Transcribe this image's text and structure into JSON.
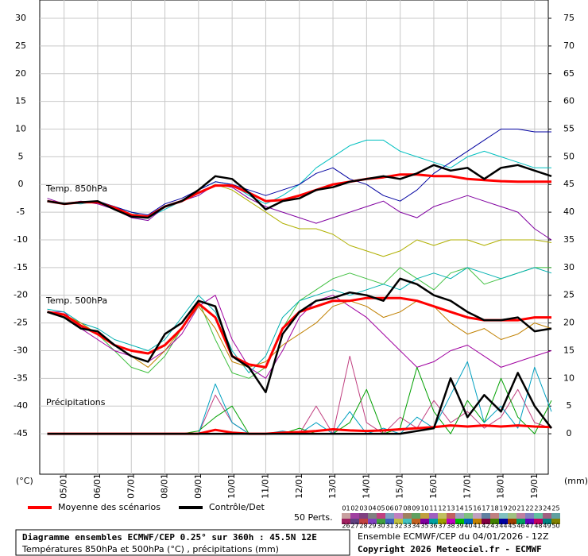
{
  "chart_data": {
    "type": "line",
    "title": "Diagramme ensembles ECMWF/CEP 0.25° sur 360h : 45.5N 12E",
    "subtitle": "Températures 850hPa et 500hPa (°C) , précipitations (mm)",
    "run_label": "Ensemble ECMWF/CEP du 04/01/2026 - 12Z",
    "copyright": "Copyright 2026 Meteociel.fr - ECMWF",
    "y_unit": "(°C)",
    "y2_unit": "(mm)",
    "grid": true,
    "categories": [
      null,
      "05/01",
      null,
      "06/01",
      null,
      "07/01",
      null,
      "08/01",
      null,
      "09/01",
      null,
      "10/01",
      null,
      "11/01",
      null,
      "12/01",
      null,
      "13/01",
      null,
      "14/01",
      null,
      "15/01",
      null,
      "16/01",
      null,
      "17/01",
      null,
      "18/01",
      null,
      "19/01",
      null
    ],
    "ylim": [
      -52.3,
      33.3
    ],
    "yticks": [
      30,
      25,
      20,
      15,
      10,
      5,
      0,
      -5,
      -10,
      -15,
      -20,
      -25,
      -30,
      -35,
      -40,
      -45
    ],
    "y2lim": [
      -7.3,
      78.3
    ],
    "y2ticks": [
      75,
      70,
      65,
      60,
      55,
      50,
      45,
      40,
      35,
      30,
      25,
      20,
      15,
      10,
      5,
      0
    ],
    "legend": [
      {
        "name": "Moyenne des scénarios",
        "color": "#ff0000"
      },
      {
        "name": "Contrôle/Det",
        "color": "#000000"
      }
    ],
    "perturbations_label": "50 Perts.",
    "members": [
      {
        "label": "01",
        "color": "#c8a0a0"
      },
      {
        "label": "02",
        "color": "#a040a0"
      },
      {
        "label": "03",
        "color": "#804080"
      },
      {
        "label": "04",
        "color": "#808080"
      },
      {
        "label": "05",
        "color": "#c04080"
      },
      {
        "label": "06",
        "color": "#80a0c0"
      },
      {
        "label": "07",
        "color": "#c080c0"
      },
      {
        "label": "08",
        "color": "#a08060"
      },
      {
        "label": "09",
        "color": "#60a060"
      },
      {
        "label": "10",
        "color": "#c0a040"
      },
      {
        "label": "11",
        "color": "#a060c0"
      },
      {
        "label": "12",
        "color": "#c0c060"
      },
      {
        "label": "13",
        "color": "#c06060"
      },
      {
        "label": "14",
        "color": "#a0a0c0"
      },
      {
        "label": "15",
        "color": "#80c080"
      },
      {
        "label": "16",
        "color": "#c0a0c0"
      },
      {
        "label": "17",
        "color": "#6080a0"
      },
      {
        "label": "18",
        "color": "#c08080"
      },
      {
        "label": "19",
        "color": "#80c0c0"
      },
      {
        "label": "20",
        "color": "#a0c080"
      },
      {
        "label": "21",
        "color": "#c080a0"
      },
      {
        "label": "22",
        "color": "#8080c0"
      },
      {
        "label": "23",
        "color": "#60c0a0"
      },
      {
        "label": "24",
        "color": "#a06080"
      },
      {
        "label": "25",
        "color": "#60a0a0"
      },
      {
        "label": "26",
        "color": "#a02060"
      },
      {
        "label": "27",
        "color": "#604080"
      },
      {
        "label": "28",
        "color": "#c04040"
      },
      {
        "label": "29",
        "color": "#8040c0"
      },
      {
        "label": "30",
        "color": "#40a040"
      },
      {
        "label": "31",
        "color": "#4060c0"
      },
      {
        "label": "32",
        "color": "#c0c040"
      },
      {
        "label": "33",
        "color": "#40c0c0"
      },
      {
        "label": "34",
        "color": "#c06020"
      },
      {
        "label": "35",
        "color": "#8000a0"
      },
      {
        "label": "36",
        "color": "#00a0a0"
      },
      {
        "label": "37",
        "color": "#a0a000"
      },
      {
        "label": "38",
        "color": "#c000c0"
      },
      {
        "label": "39",
        "color": "#00c000"
      },
      {
        "label": "40",
        "color": "#0060c0"
      },
      {
        "label": "41",
        "color": "#c08000"
      },
      {
        "label": "42",
        "color": "#800040"
      },
      {
        "label": "43",
        "color": "#408000"
      },
      {
        "label": "44",
        "color": "#0000a0"
      },
      {
        "label": "45",
        "color": "#a04000"
      },
      {
        "label": "46",
        "color": "#00a060"
      },
      {
        "label": "47",
        "color": "#6000c0"
      },
      {
        "label": "48",
        "color": "#c00060"
      },
      {
        "label": "49",
        "color": "#008080"
      },
      {
        "label": "50",
        "color": "#808000"
      }
    ],
    "panels": [
      {
        "label": "Temp. 850hPa",
        "axis": "y",
        "mean": [
          -3,
          -3.5,
          -3.2,
          -3.2,
          -4.2,
          -5.5,
          -5.8,
          -4,
          -3,
          -1.5,
          -0.2,
          -0.2,
          -1.5,
          -3,
          -2.8,
          -2,
          -1,
          0,
          0.5,
          1,
          1.3,
          1.8,
          1.8,
          1.5,
          1.5,
          1,
          0.8,
          0.6,
          0.5,
          0.5,
          0.5
        ],
        "control": [
          -3,
          -3.5,
          -3.2,
          -3,
          -4.5,
          -5.8,
          -6,
          -4,
          -3,
          -1,
          1.5,
          1,
          -1.5,
          -4.5,
          -3,
          -2.5,
          -1,
          -0.5,
          0.5,
          1,
          1.5,
          1,
          2,
          3.5,
          2.5,
          3,
          1,
          3,
          3.5,
          2.5,
          1.5
        ],
        "perturbations": [
          {
            "color": "#00c0c0",
            "values": [
              -3,
              -3.3,
              -3.5,
              -3,
              -4,
              -5,
              -6,
              -4.5,
              -3,
              -1,
              0.5,
              0,
              -2,
              -3.5,
              -2,
              0,
              3,
              5,
              7,
              8,
              8,
              6,
              5,
              4,
              3,
              5,
              6,
              5,
              4,
              3,
              3
            ]
          },
          {
            "color": "#8000a0",
            "values": [
              -2.5,
              -3.5,
              -3,
              -3.5,
              -4.5,
              -6,
              -6.5,
              -4,
              -3,
              -2,
              0,
              -0.5,
              -2.5,
              -4,
              -5,
              -6,
              -7,
              -6,
              -5,
              -4,
              -3,
              -5,
              -6,
              -4,
              -3,
              -2,
              -3,
              -4,
              -5,
              -8,
              -10
            ]
          },
          {
            "color": "#b0b000",
            "values": [
              -3,
              -3.5,
              -3.3,
              -3.3,
              -4,
              -5.5,
              -6,
              -4,
              -3,
              -1.5,
              0,
              -1,
              -3,
              -5,
              -7,
              -8,
              -8,
              -9,
              -11,
              -12,
              -13,
              -12,
              -10,
              -11,
              -10,
              -10,
              -11,
              -10,
              -10,
              -10,
              -10.5
            ]
          },
          {
            "color": "#0000a0",
            "values": [
              -3,
              -3.5,
              -3.2,
              -3,
              -4,
              -5,
              -5.5,
              -3.5,
              -2.5,
              -1,
              0.5,
              0,
              -1,
              -2,
              -1,
              0,
              2,
              3,
              1,
              0,
              -2,
              -3,
              -1,
              2,
              4,
              6,
              8,
              10,
              10,
              9.5,
              9.5
            ]
          }
        ]
      },
      {
        "label": "Temp. 500hPa",
        "axis": "y",
        "mean": [
          -23,
          -23.5,
          -25.5,
          -27,
          -29,
          -30,
          -30.5,
          -29,
          -26,
          -21.5,
          -24,
          -31,
          -32.5,
          -33,
          -26,
          -23,
          -22,
          -21,
          -21,
          -20.5,
          -20.5,
          -20.5,
          -21,
          -22,
          -23,
          -24,
          -24.5,
          -24.5,
          -24.5,
          -24,
          -24
        ],
        "control": [
          -23,
          -24,
          -26,
          -26.5,
          -29,
          -31,
          -32,
          -27,
          -25,
          -21,
          -22,
          -31,
          -33,
          -37.5,
          -27,
          -23,
          -21,
          -20.5,
          -19.5,
          -20,
          -21,
          -17,
          -18,
          -20,
          -21,
          -23,
          -24.5,
          -24.5,
          -24,
          -26.5,
          -26
        ],
        "perturbations": [
          {
            "color": "#40c040",
            "values": [
              -23,
              -24,
              -25,
              -27,
              -30,
              -33,
              -34,
              -31,
              -26,
              -21,
              -28,
              -34,
              -35,
              -33,
              -26,
              -21,
              -19,
              -17,
              -16,
              -17,
              -18,
              -15,
              -17,
              -19,
              -16,
              -15,
              -18,
              -17,
              -16,
              -15,
              -15
            ]
          },
          {
            "color": "#a000a0",
            "values": [
              -23,
              -23,
              -26,
              -28,
              -30,
              -31,
              -32,
              -30,
              -27,
              -22,
              -20,
              -28,
              -33,
              -35,
              -30,
              -24,
              -21,
              -20,
              -22,
              -24,
              -27,
              -30,
              -33,
              -32,
              -30,
              -29,
              -31,
              -33,
              -32,
              -31,
              -30
            ]
          },
          {
            "color": "#00b0b0",
            "values": [
              -22.5,
              -23,
              -25,
              -26,
              -28,
              -29,
              -30,
              -28,
              -24,
              -20,
              -23,
              -30,
              -34,
              -31,
              -24,
              -21,
              -20,
              -19,
              -20,
              -19,
              -18,
              -19,
              -17,
              -16,
              -17,
              -15,
              -16,
              -17,
              -16,
              -15,
              -16
            ]
          },
          {
            "color": "#c08000",
            "values": [
              -23,
              -23.5,
              -25,
              -27,
              -29,
              -31,
              -33,
              -30,
              -26,
              -22,
              -26,
              -32,
              -33,
              -32,
              -29,
              -27,
              -25,
              -22,
              -21,
              -22,
              -24,
              -23,
              -21,
              -22,
              -25,
              -27,
              -26,
              -28,
              -27,
              -25,
              -26
            ]
          }
        ]
      },
      {
        "label": "Précipitations",
        "axis": "y2",
        "mean": [
          0,
          0,
          0,
          0,
          0,
          0,
          0,
          0,
          0,
          0,
          0.7,
          0.2,
          0,
          0,
          0.2,
          0.3,
          0.5,
          0.8,
          0.6,
          0.5,
          0.6,
          0.8,
          1,
          1.2,
          1.5,
          1.3,
          1.5,
          1.3,
          1.5,
          1.3,
          1.2
        ],
        "control": [
          0,
          0,
          0,
          0,
          0,
          0,
          0,
          0,
          0,
          0,
          0,
          0,
          0,
          0,
          0,
          0,
          0,
          0,
          0,
          0,
          0,
          0,
          0.5,
          1,
          10,
          3,
          7,
          4,
          11,
          5,
          1
        ],
        "perturbations": [
          {
            "color": "#c04080",
            "values": [
              0,
              0,
              0,
              0,
              0,
              0,
              0,
              0,
              0,
              0,
              7,
              2,
              0,
              0,
              0,
              0,
              5,
              0,
              14,
              2,
              0,
              3,
              1,
              6,
              2,
              4,
              1,
              3,
              8,
              2,
              1
            ]
          },
          {
            "color": "#00a000",
            "values": [
              0,
              0,
              0,
              0,
              0,
              0,
              0,
              0,
              0,
              0.5,
              3,
              5,
              0,
              0,
              0,
              1,
              0,
              0,
              2,
              8,
              0,
              1,
              12,
              4,
              0,
              6,
              2,
              10,
              3,
              0,
              6
            ]
          },
          {
            "color": "#00a0c0",
            "values": [
              0,
              0,
              0,
              0,
              0,
              0,
              0,
              0,
              0,
              0,
              9,
              2,
              0,
              0,
              0.5,
              0,
              2,
              0,
              4,
              0,
              1,
              0,
              3,
              1,
              7,
              13,
              2,
              5,
              1,
              12,
              4
            ]
          }
        ]
      }
    ]
  }
}
